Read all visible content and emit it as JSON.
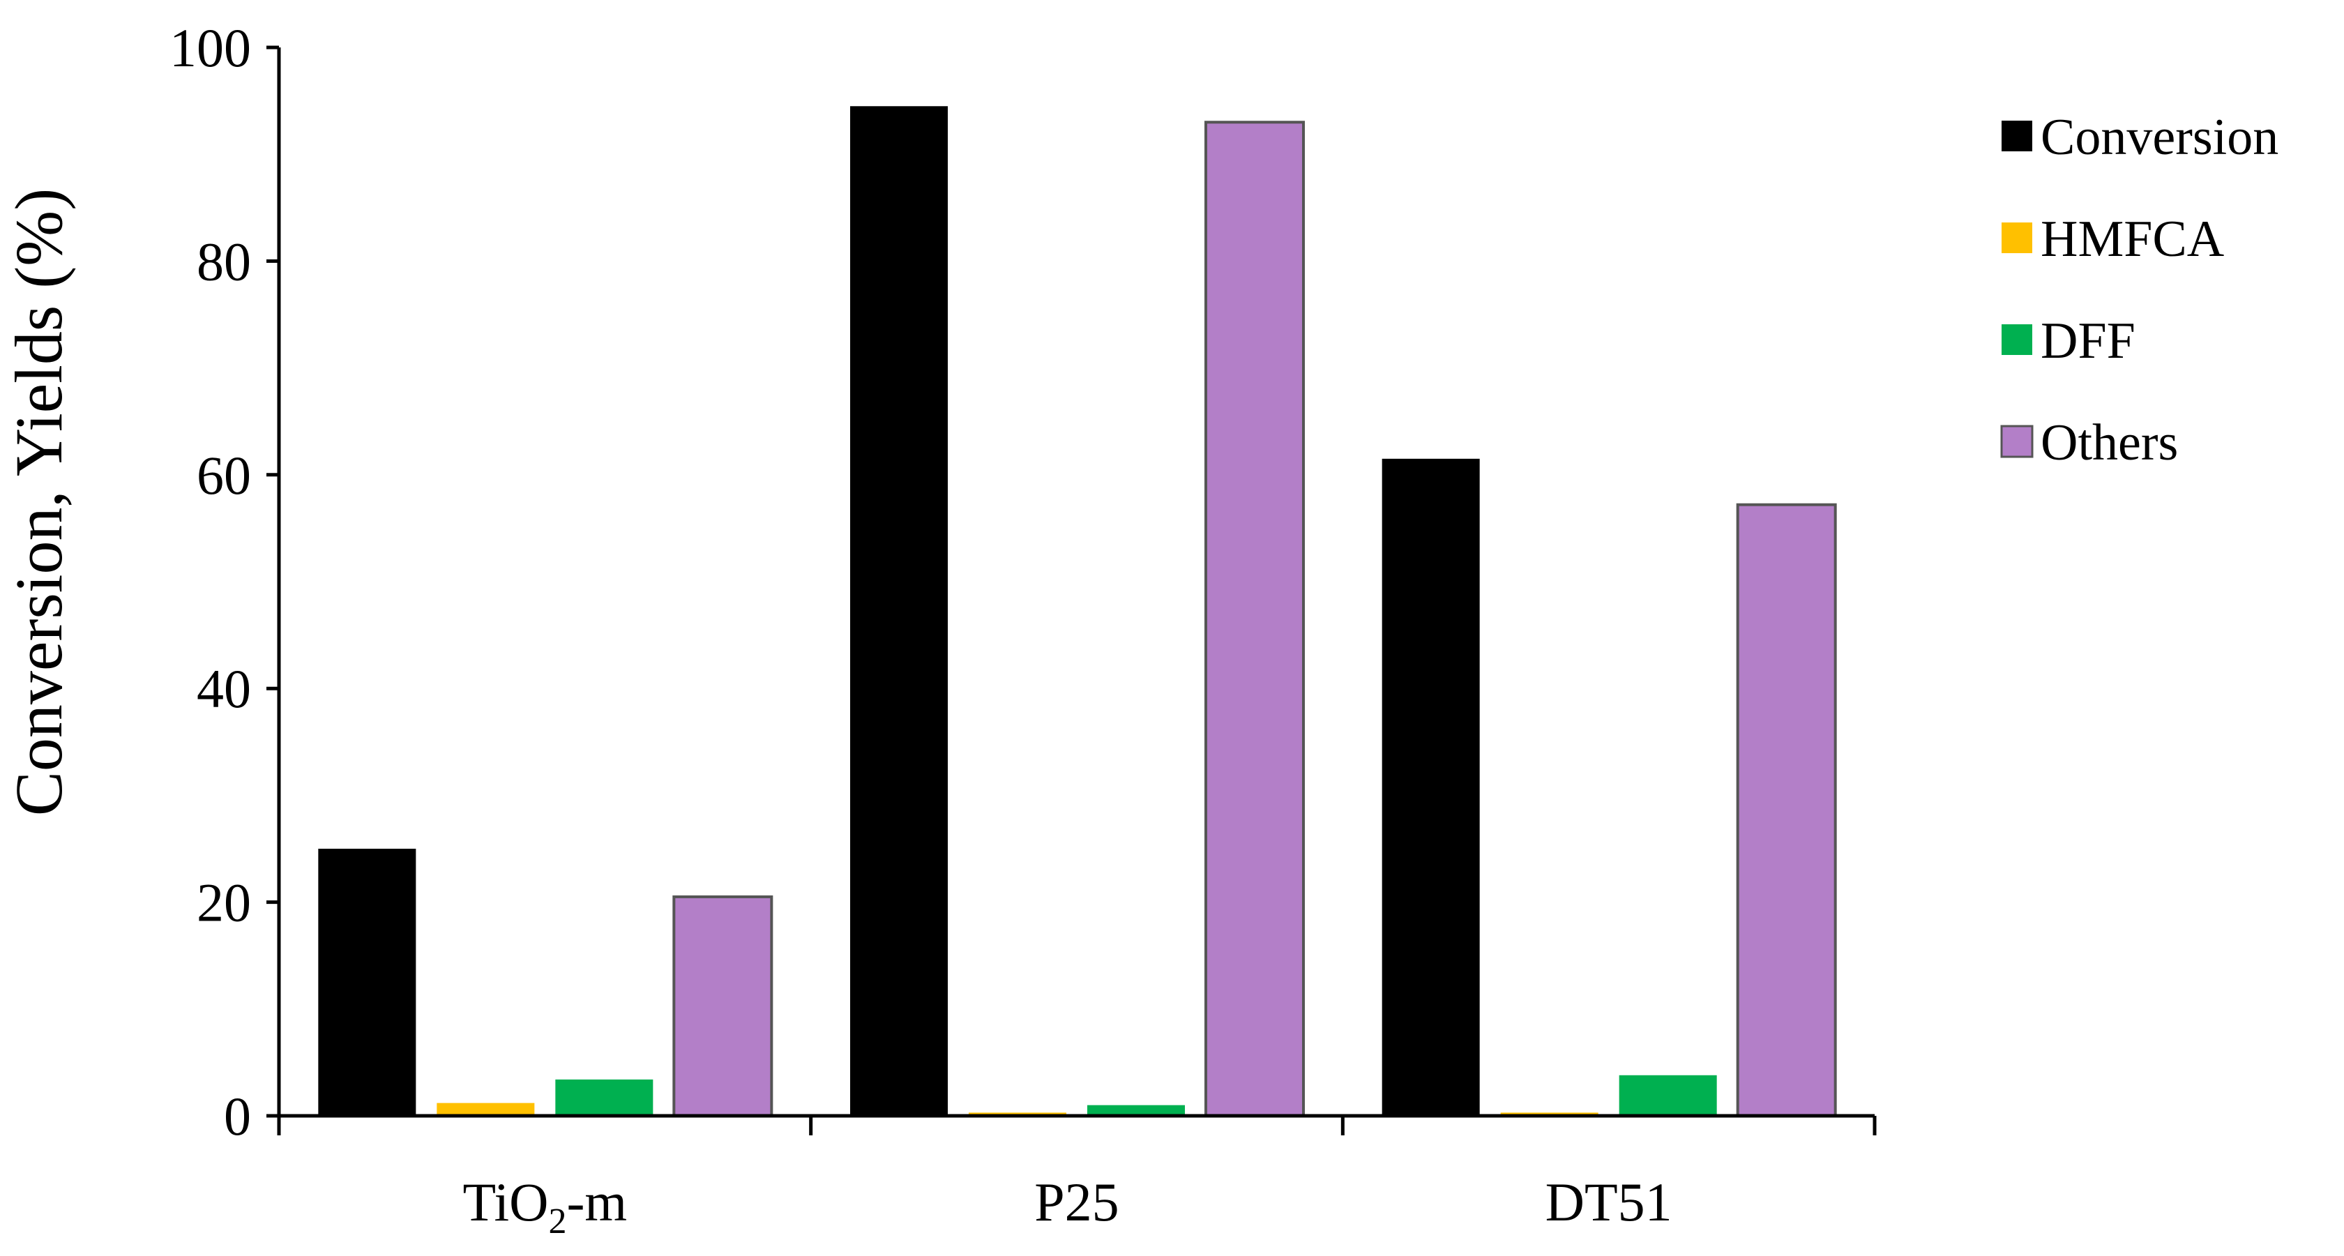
{
  "chart_data": {
    "type": "bar",
    "categories": [
      {
        "main": "TiO",
        "sub": "2",
        "suffix": "-m"
      },
      {
        "main": "P25",
        "sub": "",
        "suffix": ""
      },
      {
        "main": "DT51",
        "sub": "",
        "suffix": ""
      }
    ],
    "series": [
      {
        "name": "Conversion",
        "color": "#000000",
        "values": [
          25,
          94.5,
          61.5
        ]
      },
      {
        "name": "HMFCA",
        "color": "#FFC000",
        "values": [
          1.2,
          0.3,
          0.3
        ]
      },
      {
        "name": "DFF",
        "color": "#00B050",
        "values": [
          3.4,
          1.0,
          3.8
        ]
      },
      {
        "name": "Others",
        "color": "#B37FC8",
        "values": [
          20.5,
          93,
          57.2
        ]
      }
    ],
    "ylabel": "Conversion, Yields (%)",
    "xlabel": "",
    "ylim": [
      0,
      100
    ],
    "yticks": [
      0,
      20,
      40,
      60,
      80,
      100
    ],
    "legend_position": "right",
    "grid": false
  }
}
